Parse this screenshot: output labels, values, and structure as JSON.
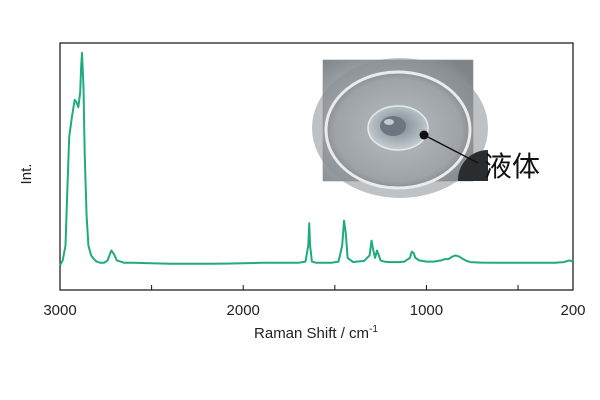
{
  "chart_data": {
    "type": "line",
    "title": "",
    "xlabel": "Raman Shift / cm",
    "xlabel_superscript": "-1",
    "ylabel": "Int.",
    "xlim": [
      3000,
      200
    ],
    "x_reversed": true,
    "xticks": [
      3000,
      2000,
      1000,
      200
    ],
    "y_ticks_shown": false,
    "ylim": [
      0,
      100
    ],
    "grid": false,
    "legend": "none",
    "series": [
      {
        "color": "#1faa7f",
        "points": [
          [
            3000,
            10
          ],
          [
            2985,
            12
          ],
          [
            2970,
            18
          ],
          [
            2960,
            40
          ],
          [
            2950,
            62
          ],
          [
            2935,
            70
          ],
          [
            2920,
            77
          ],
          [
            2910,
            76
          ],
          [
            2900,
            74
          ],
          [
            2890,
            80
          ],
          [
            2885,
            90
          ],
          [
            2880,
            96
          ],
          [
            2872,
            82
          ],
          [
            2865,
            55
          ],
          [
            2855,
            30
          ],
          [
            2845,
            18
          ],
          [
            2830,
            14
          ],
          [
            2815,
            12.5
          ],
          [
            2800,
            11.5
          ],
          [
            2780,
            11
          ],
          [
            2760,
            11
          ],
          [
            2740,
            12
          ],
          [
            2720,
            16
          ],
          [
            2705,
            14.5
          ],
          [
            2690,
            12
          ],
          [
            2670,
            11.5
          ],
          [
            2650,
            11
          ],
          [
            2600,
            11
          ],
          [
            2500,
            10.8
          ],
          [
            2400,
            10.6
          ],
          [
            2300,
            10.6
          ],
          [
            2200,
            10.6
          ],
          [
            2100,
            10.7
          ],
          [
            2000,
            10.8
          ],
          [
            1900,
            11
          ],
          [
            1800,
            11
          ],
          [
            1700,
            11
          ],
          [
            1660,
            11.5
          ],
          [
            1645,
            18
          ],
          [
            1640,
            27
          ],
          [
            1635,
            18
          ],
          [
            1625,
            11.5
          ],
          [
            1600,
            11
          ],
          [
            1520,
            11
          ],
          [
            1480,
            11.5
          ],
          [
            1460,
            18
          ],
          [
            1450,
            28
          ],
          [
            1440,
            23
          ],
          [
            1430,
            13
          ],
          [
            1400,
            11.3
          ],
          [
            1380,
            11.5
          ],
          [
            1340,
            11.8
          ],
          [
            1310,
            14
          ],
          [
            1300,
            20
          ],
          [
            1290,
            16
          ],
          [
            1280,
            13
          ],
          [
            1270,
            16
          ],
          [
            1260,
            14
          ],
          [
            1250,
            12
          ],
          [
            1230,
            11.5
          ],
          [
            1200,
            11.3
          ],
          [
            1150,
            11.3
          ],
          [
            1120,
            11.5
          ],
          [
            1090,
            13
          ],
          [
            1080,
            15.5
          ],
          [
            1070,
            15
          ],
          [
            1060,
            13
          ],
          [
            1050,
            12.5
          ],
          [
            1040,
            12
          ],
          [
            1000,
            11.5
          ],
          [
            960,
            11.5
          ],
          [
            920,
            12
          ],
          [
            900,
            12.5
          ],
          [
            880,
            12.5
          ],
          [
            860,
            13.5
          ],
          [
            840,
            14
          ],
          [
            820,
            13.5
          ],
          [
            800,
            12.5
          ],
          [
            780,
            11.8
          ],
          [
            760,
            11.3
          ],
          [
            700,
            11.1
          ],
          [
            600,
            11
          ],
          [
            500,
            11
          ],
          [
            400,
            11
          ],
          [
            300,
            11
          ],
          [
            250,
            11.3
          ],
          [
            220,
            12
          ],
          [
            200,
            11.5
          ]
        ]
      }
    ],
    "annotations": [
      {
        "text": "液体",
        "type": "inset-photo-callout"
      }
    ]
  }
}
